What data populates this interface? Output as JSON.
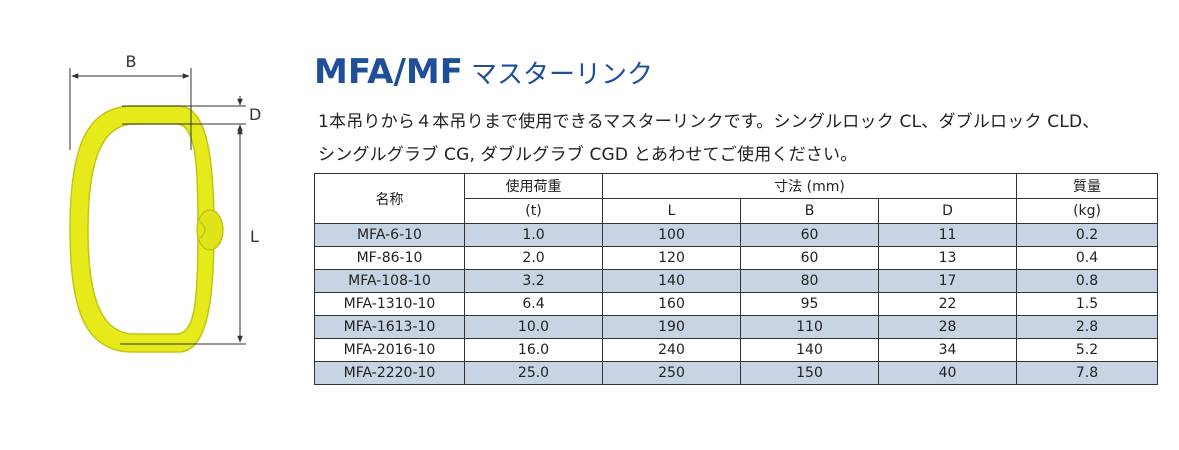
{
  "figure": {
    "dim_b": "B",
    "dim_d": "D",
    "dim_l": "L",
    "colors": {
      "ring": "#e6ea1a",
      "ring_outline": "#b9bd10",
      "dim_line": "#333333"
    }
  },
  "title": {
    "model": "MFA/MF",
    "name": "マスターリンク"
  },
  "description": {
    "line1": "1本吊りから４本吊りまで使用できるマスターリンクです。シングルロック CL、ダブルロック CLD、",
    "line2": "シングルグラブ CG, ダブルグラブ CGD とあわせてご使用ください。"
  },
  "table": {
    "headers": {
      "name": "名称",
      "load_line1": "使用荷重",
      "load_line2": "(t)",
      "dims": "寸法 (mm)",
      "dim_l": "L",
      "dim_b": "B",
      "dim_d": "D",
      "mass_line1": "質量",
      "mass_line2": "(kg)"
    },
    "rows": [
      {
        "name": "MFA-6-10",
        "load": "1.0",
        "l": "100",
        "b": "60",
        "d": "11",
        "mass": "0.2"
      },
      {
        "name": "MF-86-10",
        "load": "2.0",
        "l": "120",
        "b": "60",
        "d": "13",
        "mass": "0.4"
      },
      {
        "name": "MFA-108-10",
        "load": "3.2",
        "l": "140",
        "b": "80",
        "d": "17",
        "mass": "0.8"
      },
      {
        "name": "MFA-1310-10",
        "load": "6.4",
        "l": "160",
        "b": "95",
        "d": "22",
        "mass": "1.5"
      },
      {
        "name": "MFA-1613-10",
        "load": "10.0",
        "l": "190",
        "b": "110",
        "d": "28",
        "mass": "2.8"
      },
      {
        "name": "MFA-2016-10",
        "load": "16.0",
        "l": "240",
        "b": "140",
        "d": "34",
        "mass": "5.2"
      },
      {
        "name": "MFA-2220-10",
        "load": "25.0",
        "l": "250",
        "b": "150",
        "d": "40",
        "mass": "7.8"
      }
    ],
    "colors": {
      "shade": "#c6d4e4",
      "border": "#333333"
    }
  }
}
